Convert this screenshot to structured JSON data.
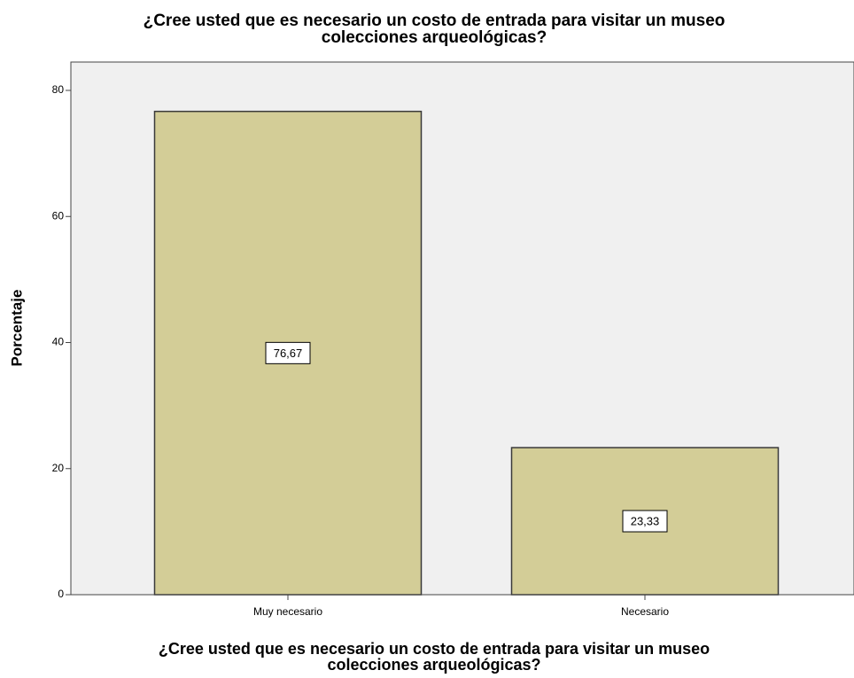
{
  "chart_data": {
    "type": "bar",
    "title": "¿Cree usted que es necesario un costo de entrada para visitar un museo colecciones arqueológicas?",
    "x_label": "¿Cree usted que es necesario un costo de entrada para visitar un museo colecciones arqueológicas?",
    "y_label": "Porcentaje",
    "categories": [
      "Muy necesario",
      "Necesario"
    ],
    "values": [
      76.67,
      23.33
    ],
    "value_labels": [
      "76,67",
      "23,33"
    ],
    "color": "#d3cd97",
    "ylim": [
      0,
      84.5
    ],
    "yticks": [
      0,
      20,
      40,
      60,
      80
    ]
  }
}
